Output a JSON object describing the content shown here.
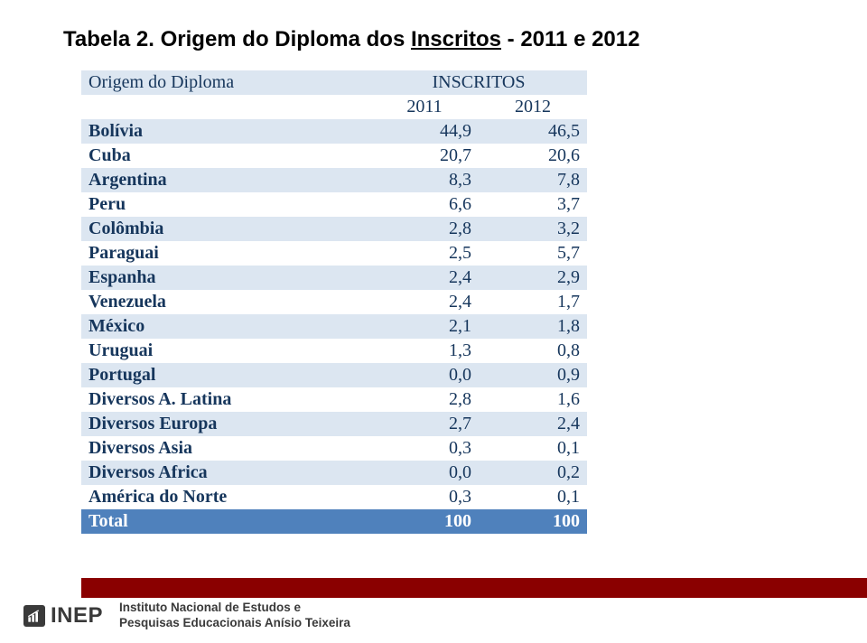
{
  "title_prefix": "Tabela 2. Origem do Diploma dos ",
  "title_underlined": "Inscritos",
  "title_suffix": " - 2011 e 2012",
  "table": {
    "header_origin": "Origem do Diploma",
    "header_inscritos": "INSCRITOS",
    "year1": "2011",
    "year2": "2012",
    "row_alt_bg": "#dce6f1",
    "header_color": "#16365c",
    "total_bg": "#4f81bc",
    "rows": [
      {
        "name": "Bolívia",
        "v1": "44,9",
        "v2": "46,5",
        "alt": true
      },
      {
        "name": "Cuba",
        "v1": "20,7",
        "v2": "20,6",
        "alt": false
      },
      {
        "name": "Argentina",
        "v1": "8,3",
        "v2": "7,8",
        "alt": true
      },
      {
        "name": "Peru",
        "v1": "6,6",
        "v2": "3,7",
        "alt": false
      },
      {
        "name": "Colômbia",
        "v1": "2,8",
        "v2": "3,2",
        "alt": true
      },
      {
        "name": "Paraguai",
        "v1": "2,5",
        "v2": "5,7",
        "alt": false
      },
      {
        "name": "Espanha",
        "v1": "2,4",
        "v2": "2,9",
        "alt": true
      },
      {
        "name": "Venezuela",
        "v1": "2,4",
        "v2": "1,7",
        "alt": false
      },
      {
        "name": "México",
        "v1": "2,1",
        "v2": "1,8",
        "alt": true
      },
      {
        "name": "Uruguai",
        "v1": "1,3",
        "v2": "0,8",
        "alt": false
      },
      {
        "name": "Portugal",
        "v1": "0,0",
        "v2": "0,9",
        "alt": true
      },
      {
        "name": "Diversos A. Latina",
        "v1": "2,8",
        "v2": "1,6",
        "alt": false
      },
      {
        "name": "Diversos Europa",
        "v1": "2,7",
        "v2": "2,4",
        "alt": true
      },
      {
        "name": "Diversos Asia",
        "v1": "0,3",
        "v2": "0,1",
        "alt": false
      },
      {
        "name": "Diversos Africa",
        "v1": "0,0",
        "v2": "0,2",
        "alt": true
      },
      {
        "name": "América do Norte",
        "v1": "0,3",
        "v2": "0,1",
        "alt": false
      }
    ],
    "total": {
      "name": "Total",
      "v1": "100",
      "v2": "100"
    }
  },
  "footer": {
    "accent_color": "#8a0000",
    "logo_text": "INEP",
    "inst_line1": "Instituto Nacional de Estudos e",
    "inst_line2": "Pesquisas Educacionais Anísio Teixeira"
  }
}
